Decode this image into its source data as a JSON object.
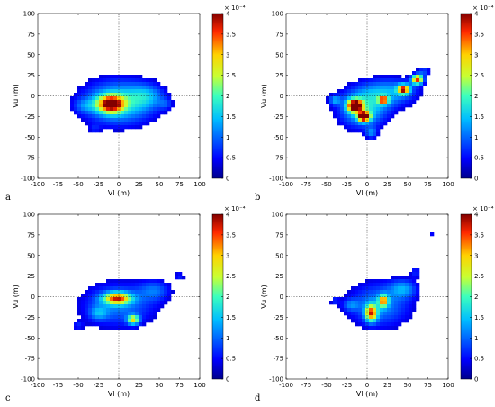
{
  "chart_data": [
    {
      "panel": "a",
      "type": "heatmap",
      "xlabel": "Vl (m)",
      "ylabel": "Vu (m)",
      "xlim": [
        -100,
        100
      ],
      "ylim": [
        -100,
        100
      ],
      "x_ticks": [
        -100,
        -75,
        -50,
        -25,
        0,
        25,
        50,
        75,
        100
      ],
      "y_ticks": [
        100,
        75,
        50,
        25,
        0,
        -25,
        -50,
        -75,
        -100
      ],
      "colorbar": {
        "min": 0,
        "max": 4,
        "ticks": [
          0,
          0.5,
          1,
          1.5,
          2,
          2.5,
          3,
          3.5,
          4
        ],
        "exponent_label": "× 10⁻⁴"
      },
      "reference_lines": {
        "x": 0,
        "y": 0
      },
      "blobs": [
        {
          "x": 0,
          "y": -8,
          "sx": 32,
          "sy": 19,
          "v": 1.8
        },
        {
          "x": -10,
          "y": -10,
          "sx": 11,
          "sy": 7,
          "v": 3.2
        },
        {
          "x": 35,
          "y": 0,
          "sx": 15,
          "sy": 10,
          "v": 0.8
        },
        {
          "x": -42,
          "y": -12,
          "sx": 9,
          "sy": 6,
          "v": 0.6
        },
        {
          "x": 58,
          "y": -10,
          "sx": 6,
          "sy": 5,
          "v": 0.5
        },
        {
          "x": -30,
          "y": -40,
          "sx": 5,
          "sy": 4,
          "v": 0.4
        }
      ]
    },
    {
      "panel": "b",
      "type": "heatmap",
      "xlabel": "Vl (m)",
      "ylabel": "Vu (m)",
      "xlim": [
        -100,
        100
      ],
      "ylim": [
        -100,
        100
      ],
      "x_ticks": [
        -100,
        -75,
        -50,
        -25,
        0,
        25,
        50,
        75,
        100
      ],
      "y_ticks": [
        100,
        75,
        50,
        25,
        0,
        -25,
        -50,
        -75,
        -100
      ],
      "colorbar": {
        "min": 0,
        "max": 4,
        "ticks": [
          0,
          0.5,
          1,
          1.5,
          2,
          2.5,
          3,
          3.5,
          4
        ],
        "exponent_label": "× 10⁻⁴"
      },
      "reference_lines": {
        "x": 0,
        "y": 0
      },
      "blobs": [
        {
          "x": -5,
          "y": -15,
          "sx": 22,
          "sy": 17,
          "v": 1.7
        },
        {
          "x": -15,
          "y": -12,
          "sx": 6,
          "sy": 5,
          "v": 4.2
        },
        {
          "x": -4,
          "y": -25,
          "sx": 5,
          "sy": 4,
          "v": 4.0
        },
        {
          "x": 30,
          "y": 5,
          "sx": 25,
          "sy": 12,
          "v": 1.2
        },
        {
          "x": 45,
          "y": 8,
          "sx": 5,
          "sy": 4,
          "v": 3.2
        },
        {
          "x": 62,
          "y": 20,
          "sx": 5,
          "sy": 4,
          "v": 3.4
        },
        {
          "x": 20,
          "y": -5,
          "sx": 4,
          "sy": 3,
          "v": 2.8
        },
        {
          "x": -40,
          "y": -5,
          "sx": 5,
          "sy": 4,
          "v": 1.0
        },
        {
          "x": 70,
          "y": 30,
          "sx": 6,
          "sy": 4,
          "v": 0.8
        },
        {
          "x": 5,
          "y": -45,
          "sx": 5,
          "sy": 5,
          "v": 0.9
        }
      ]
    },
    {
      "panel": "c",
      "type": "heatmap",
      "xlabel": "Vl (m)",
      "ylabel": "Vu (m)",
      "xlim": [
        -100,
        100
      ],
      "ylim": [
        -100,
        100
      ],
      "x_ticks": [
        -100,
        -75,
        -50,
        -25,
        0,
        25,
        50,
        75,
        100
      ],
      "y_ticks": [
        100,
        75,
        50,
        25,
        0,
        -25,
        -50,
        -75,
        -100
      ],
      "colorbar": {
        "min": 0,
        "max": 4,
        "ticks": [
          0,
          0.5,
          1,
          1.5,
          2,
          2.5,
          3,
          3.5,
          4
        ],
        "exponent_label": "× 10⁻⁴"
      },
      "reference_lines": {
        "x": 0,
        "y": 0
      },
      "blobs": [
        {
          "x": 0,
          "y": -10,
          "sx": 34,
          "sy": 20,
          "v": 1.1
        },
        {
          "x": -2,
          "y": -2,
          "sx": 12,
          "sy": 5,
          "v": 2.8
        },
        {
          "x": 18,
          "y": -28,
          "sx": 5,
          "sy": 4,
          "v": 2.3
        },
        {
          "x": 45,
          "y": 8,
          "sx": 14,
          "sy": 9,
          "v": 0.8
        },
        {
          "x": -25,
          "y": -20,
          "sx": 8,
          "sy": 6,
          "v": 0.8
        },
        {
          "x": 75,
          "y": 25,
          "sx": 5,
          "sy": 4,
          "v": 0.6
        },
        {
          "x": -50,
          "y": -35,
          "sx": 5,
          "sy": 4,
          "v": 0.5
        }
      ]
    },
    {
      "panel": "d",
      "type": "heatmap",
      "xlabel": "Vl (m)",
      "ylabel": "Vu (m)",
      "xlim": [
        -100,
        100
      ],
      "ylim": [
        -100,
        100
      ],
      "x_ticks": [
        -100,
        -75,
        -50,
        -25,
        0,
        25,
        50,
        75,
        100
      ],
      "y_ticks": [
        100,
        75,
        50,
        25,
        0,
        -25,
        -50,
        -75,
        -100
      ],
      "colorbar": {
        "min": 0,
        "max": 4,
        "ticks": [
          0,
          0.5,
          1,
          1.5,
          2,
          2.5,
          3,
          3.5,
          4
        ],
        "exponent_label": "× 10⁻⁴"
      },
      "reference_lines": {
        "x": 0,
        "y": 0
      },
      "blobs": [
        {
          "x": 15,
          "y": -10,
          "sx": 28,
          "sy": 20,
          "v": 1.2
        },
        {
          "x": 5,
          "y": -20,
          "sx": 5,
          "sy": 7,
          "v": 2.8
        },
        {
          "x": 20,
          "y": -5,
          "sx": 4,
          "sy": 5,
          "v": 2.5
        },
        {
          "x": 45,
          "y": 10,
          "sx": 12,
          "sy": 8,
          "v": 1.0
        },
        {
          "x": -20,
          "y": -10,
          "sx": 7,
          "sy": 5,
          "v": 0.7
        },
        {
          "x": 80,
          "y": 75,
          "sx": 3,
          "sy": 3,
          "v": 0.5
        },
        {
          "x": -40,
          "y": -5,
          "sx": 4,
          "sy": 4,
          "v": 0.5
        },
        {
          "x": 60,
          "y": 30,
          "sx": 5,
          "sy": 5,
          "v": 0.6
        }
      ]
    }
  ]
}
